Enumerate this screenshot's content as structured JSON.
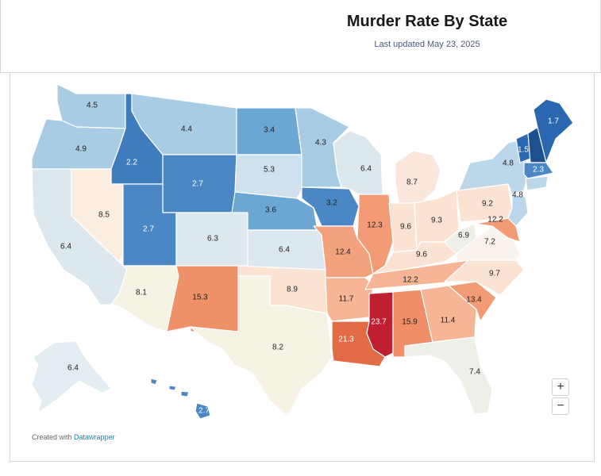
{
  "header": {
    "title": "Murder Rate By State",
    "subtitle": "Last updated May 23, 2025"
  },
  "footer": {
    "credit_prefix": "Created with",
    "credit_link": "Datawrapper"
  },
  "controls": {
    "zoom_in": "+",
    "zoom_out": "−"
  },
  "colors": {
    "very_low": "#1f5aa0",
    "low": "#4a89c3",
    "mid_low": "#9cc4df",
    "neutral": "#f3f0e6",
    "mid_high": "#f7c3a6",
    "high": "#ef8e67",
    "very_high": "#c51f32"
  },
  "states": [
    {
      "id": "WA",
      "value": "4.5"
    },
    {
      "id": "OR",
      "value": "4.9"
    },
    {
      "id": "CA",
      "value": "6.4"
    },
    {
      "id": "ID",
      "value": "2.2"
    },
    {
      "id": "NV",
      "value": "8.5"
    },
    {
      "id": "MT",
      "value": "4.4"
    },
    {
      "id": "WY",
      "value": "2.7"
    },
    {
      "id": "UT",
      "value": "2.7"
    },
    {
      "id": "AZ",
      "value": "8.1"
    },
    {
      "id": "CO",
      "value": "6.3"
    },
    {
      "id": "NM",
      "value": "15.3"
    },
    {
      "id": "ND",
      "value": "3.4"
    },
    {
      "id": "SD",
      "value": "5.3"
    },
    {
      "id": "NE",
      "value": "3.6"
    },
    {
      "id": "KS",
      "value": "6.4"
    },
    {
      "id": "OK",
      "value": "8.9"
    },
    {
      "id": "TX",
      "value": "8.2"
    },
    {
      "id": "MN",
      "value": "4.3"
    },
    {
      "id": "IA",
      "value": "3.2"
    },
    {
      "id": "MO",
      "value": "12.4"
    },
    {
      "id": "AR",
      "value": "11.7"
    },
    {
      "id": "LA",
      "value": "21.3"
    },
    {
      "id": "WI",
      "value": "6.4"
    },
    {
      "id": "IL",
      "value": "12.3"
    },
    {
      "id": "MI",
      "value": "8.7"
    },
    {
      "id": "IN",
      "value": "9.6"
    },
    {
      "id": "OH",
      "value": "9.3"
    },
    {
      "id": "KY",
      "value": "9.6"
    },
    {
      "id": "TN",
      "value": "12.2"
    },
    {
      "id": "MS",
      "value": "23.7"
    },
    {
      "id": "AL",
      "value": "15.9"
    },
    {
      "id": "GA",
      "value": "11.4"
    },
    {
      "id": "FL",
      "value": "7.4"
    },
    {
      "id": "SC",
      "value": "13.4"
    },
    {
      "id": "NC",
      "value": "9.7"
    },
    {
      "id": "VA",
      "value": "7.2"
    },
    {
      "id": "WV",
      "value": "6.9"
    },
    {
      "id": "PA",
      "value": "9.2"
    },
    {
      "id": "MD",
      "value": "12.2"
    },
    {
      "id": "NY",
      "value": "4.8"
    },
    {
      "id": "NJ",
      "value": "4.8"
    },
    {
      "id": "VT",
      "value": "1.5"
    },
    {
      "id": "NH",
      "value": ""
    },
    {
      "id": "ME",
      "value": "1.7"
    },
    {
      "id": "MA",
      "value": "2.3"
    },
    {
      "id": "AK",
      "value": "6.4"
    },
    {
      "id": "HI",
      "value": "2.7"
    }
  ]
}
